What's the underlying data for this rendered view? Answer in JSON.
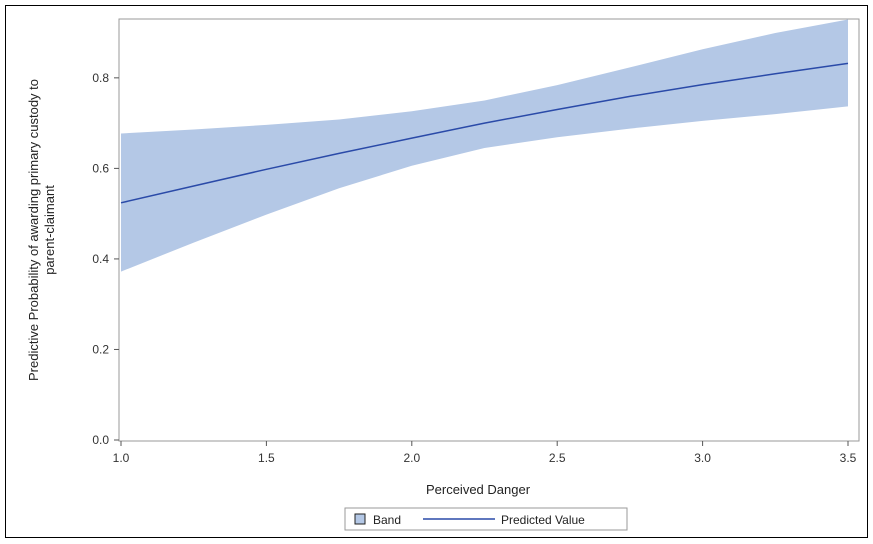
{
  "chart_data": {
    "type": "line",
    "xlabel": "Perceived Danger",
    "ylabel_lines": [
      "Predictive Probability of awarding primary custody to",
      "parent-claimant"
    ],
    "xlim": [
      1.0,
      3.5
    ],
    "ylim": [
      0.0,
      0.93
    ],
    "x_ticks": [
      "1.0",
      "1.5",
      "2.0",
      "2.5",
      "3.0",
      "3.5"
    ],
    "y_ticks": [
      "0.0",
      "0.2",
      "0.4",
      "0.6",
      "0.8"
    ],
    "grid": false,
    "legend_position": "bottom",
    "legend": [
      {
        "label": "Band",
        "kind": "band"
      },
      {
        "label": "Predicted Value",
        "kind": "line"
      }
    ],
    "series": [
      {
        "name": "Predicted Value",
        "kind": "line",
        "color": "#2a4aa8",
        "x": [
          1.0,
          1.25,
          1.5,
          1.75,
          2.0,
          2.25,
          2.5,
          2.75,
          3.0,
          3.25,
          3.5
        ],
        "y": [
          0.524,
          0.561,
          0.598,
          0.633,
          0.667,
          0.7,
          0.73,
          0.759,
          0.785,
          0.809,
          0.832
        ]
      },
      {
        "name": "Band",
        "kind": "band",
        "color": "#b4c8e6",
        "x": [
          1.0,
          1.25,
          1.5,
          1.75,
          2.0,
          2.25,
          2.5,
          2.75,
          3.0,
          3.25,
          3.5
        ],
        "upper": [
          0.677,
          0.686,
          0.696,
          0.708,
          0.726,
          0.75,
          0.784,
          0.823,
          0.863,
          0.899,
          0.929
        ],
        "lower": [
          0.372,
          0.436,
          0.498,
          0.556,
          0.606,
          0.645,
          0.669,
          0.688,
          0.705,
          0.72,
          0.737
        ]
      }
    ]
  }
}
